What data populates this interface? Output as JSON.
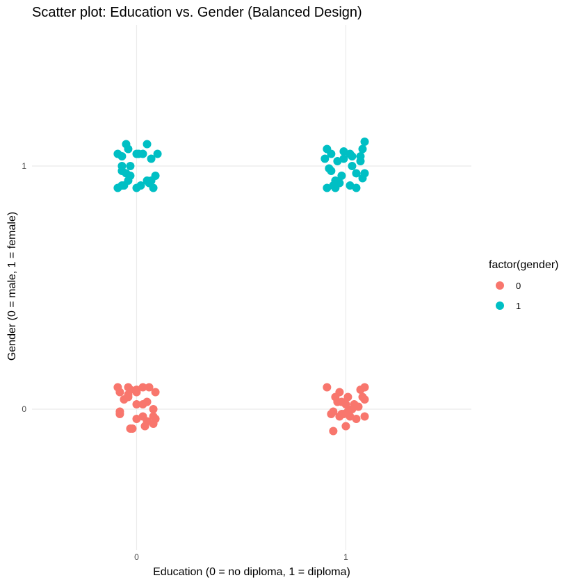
{
  "chart_data": {
    "type": "scatter",
    "title": "Scatter plot: Education vs. Gender (Balanced Design)",
    "xlabel": "Education (0 = no diploma, 1 = diploma)",
    "ylabel": "Gender (0 = male, 1 = female)",
    "x_ticks": [
      "0",
      "1"
    ],
    "y_ticks": [
      "0",
      "1"
    ],
    "xlim": [
      -0.5,
      1.6
    ],
    "ylim": [
      -0.58,
      1.58
    ],
    "grid": true,
    "legend": {
      "title": "factor(gender)",
      "position": "right"
    },
    "series": [
      {
        "name": "0",
        "color": "#F8766D",
        "points": [
          [
            -0.09,
            0.09
          ],
          [
            -0.08,
            0.07
          ],
          [
            -0.06,
            0.04
          ],
          [
            -0.04,
            0.06
          ],
          [
            -0.04,
            0.05
          ],
          [
            -0.04,
            0.09
          ],
          [
            -0.03,
            0.08
          ],
          [
            -0.08,
            -0.01
          ],
          [
            -0.08,
            -0.02
          ],
          [
            0.0,
            0.08
          ],
          [
            0.0,
            0.07
          ],
          [
            0.03,
            0.09
          ],
          [
            0.06,
            0.09
          ],
          [
            0.09,
            0.07
          ],
          [
            0.0,
            0.02
          ],
          [
            0.03,
            0.02
          ],
          [
            0.05,
            0.03
          ],
          [
            0.08,
            0.0
          ],
          [
            0.08,
            -0.03
          ],
          [
            0.09,
            -0.04
          ],
          [
            0.0,
            -0.04
          ],
          [
            0.05,
            -0.05
          ],
          [
            0.08,
            -0.06
          ],
          [
            -0.02,
            -0.08
          ],
          [
            -0.03,
            -0.08
          ],
          [
            0.04,
            -0.07
          ],
          [
            0.03,
            -0.03
          ],
          [
            0.91,
            0.09
          ],
          [
            0.97,
            0.07
          ],
          [
            1.07,
            0.08
          ],
          [
            1.09,
            0.09
          ],
          [
            0.95,
            0.05
          ],
          [
            1.01,
            0.05
          ],
          [
            1.08,
            0.05
          ],
          [
            1.09,
            0.04
          ],
          [
            0.96,
            0.03
          ],
          [
            0.98,
            0.03
          ],
          [
            1.0,
            0.02
          ],
          [
            1.04,
            0.02
          ],
          [
            1.06,
            0.01
          ],
          [
            1.03,
            0.0
          ],
          [
            0.94,
            -0.01
          ],
          [
            0.93,
            -0.02
          ],
          [
            0.99,
            -0.02
          ],
          [
            1.02,
            -0.03
          ],
          [
            1.05,
            -0.04
          ],
          [
            0.97,
            -0.03
          ],
          [
            1.01,
            -0.01
          ],
          [
            1.09,
            -0.03
          ],
          [
            1.0,
            -0.07
          ],
          [
            0.94,
            -0.09
          ],
          [
            0.98,
            -0.02
          ]
        ]
      },
      {
        "name": "1",
        "color": "#00BFC4",
        "points": [
          [
            -0.05,
            1.09
          ],
          [
            -0.04,
            1.07
          ],
          [
            -0.09,
            1.05
          ],
          [
            0.0,
            1.05
          ],
          [
            0.03,
            1.05
          ],
          [
            0.05,
            1.09
          ],
          [
            0.1,
            1.05
          ],
          [
            0.07,
            1.03
          ],
          [
            -0.07,
            1.0
          ],
          [
            -0.03,
            1.0
          ],
          [
            -0.07,
            0.98
          ],
          [
            -0.05,
            0.97
          ],
          [
            -0.03,
            0.96
          ],
          [
            -0.04,
            0.94
          ],
          [
            0.09,
            0.96
          ],
          [
            0.07,
            0.94
          ],
          [
            0.05,
            0.94
          ],
          [
            0.06,
            0.93
          ],
          [
            0.02,
            0.92
          ],
          [
            0.08,
            0.91
          ],
          [
            -0.07,
            0.92
          ],
          [
            -0.09,
            0.91
          ],
          [
            -0.06,
            0.92
          ],
          [
            0.0,
            0.91
          ],
          [
            0.01,
            1.05
          ],
          [
            -0.07,
            1.04
          ],
          [
            0.91,
            1.07
          ],
          [
            0.93,
            1.05
          ],
          [
            0.99,
            1.06
          ],
          [
            1.02,
            1.05
          ],
          [
            1.08,
            1.07
          ],
          [
            1.09,
            1.1
          ],
          [
            0.9,
            1.03
          ],
          [
            0.96,
            1.02
          ],
          [
            1.03,
            1.04
          ],
          [
            1.07,
            1.04
          ],
          [
            0.92,
            0.99
          ],
          [
            0.93,
            0.98
          ],
          [
            1.03,
            1.0
          ],
          [
            1.09,
            0.97
          ],
          [
            1.08,
            0.95
          ],
          [
            0.98,
            0.96
          ],
          [
            1.05,
            0.97
          ],
          [
            0.95,
            0.94
          ],
          [
            0.94,
            0.92
          ],
          [
            0.97,
            0.93
          ],
          [
            0.91,
            0.91
          ],
          [
            1.02,
            0.92
          ],
          [
            1.05,
            0.91
          ],
          [
            0.95,
            0.91
          ],
          [
            1.07,
            1.02
          ],
          [
            0.99,
            1.03
          ]
        ]
      }
    ]
  }
}
